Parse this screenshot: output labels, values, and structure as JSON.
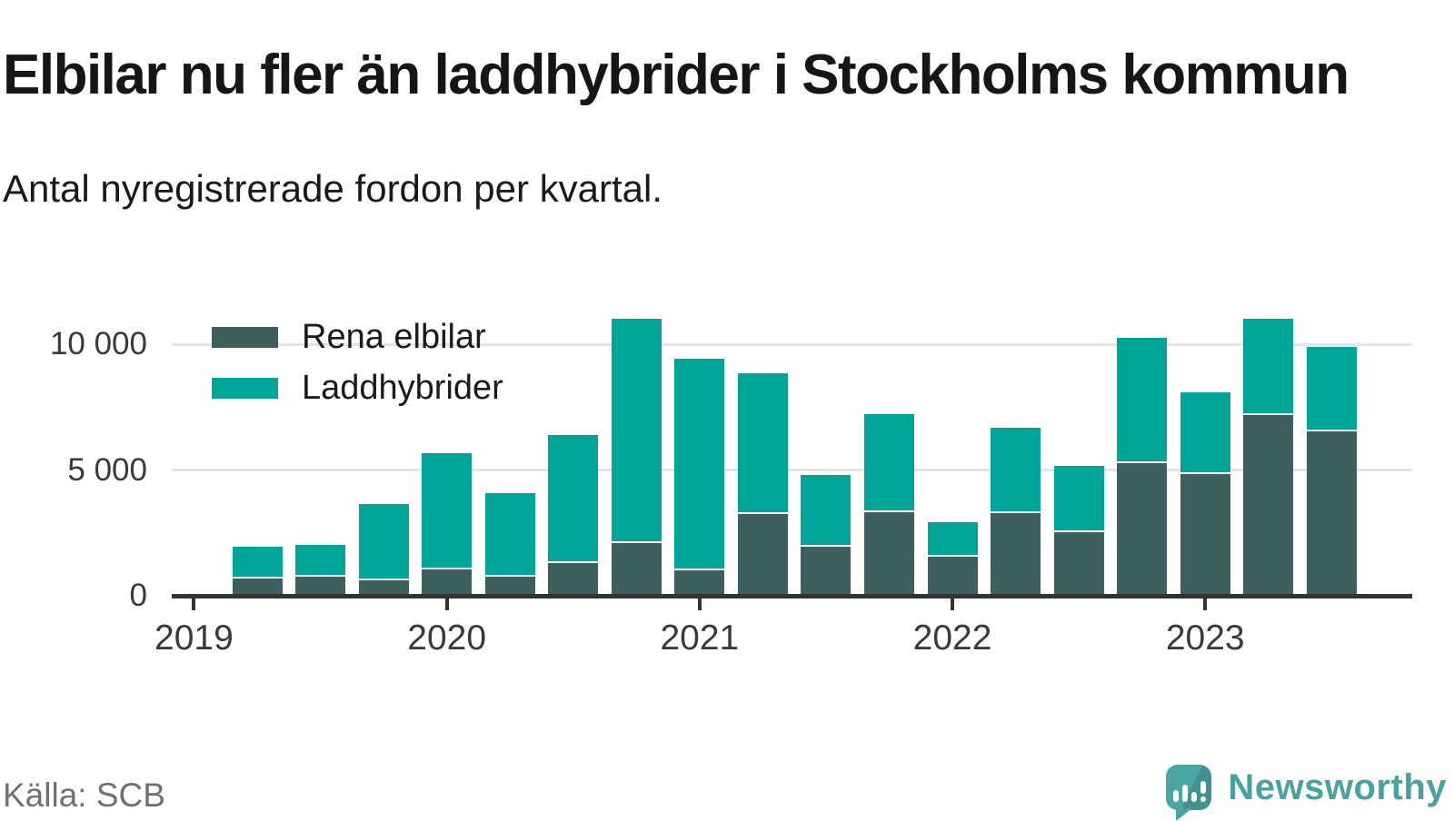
{
  "title": "Elbilar nu fler än laddhybrider i Stockholms kommun",
  "subtitle": "Antal nyregistrerade fordon per kvartal.",
  "source": "Källa: SCB",
  "brand": {
    "name": "Newsworthy",
    "icon": "newsworthy-speech-bubble-bar-chart-icon",
    "color": "#4aa2a0",
    "icon_color": "#4ba5a3"
  },
  "colors": {
    "elbilar": "#3d5f5e",
    "laddhybrider": "#00a59a",
    "axis": "#2f3434",
    "grid": "#e4e4e4",
    "text": "#1a1a1a",
    "tick_text": "#3a3a3a",
    "source_text": "#707076"
  },
  "legend": {
    "items": [
      {
        "label": "Rena elbilar",
        "color_key": "elbilar"
      },
      {
        "label": "Laddhybrider",
        "color_key": "laddhybrider"
      }
    ]
  },
  "chart_data": {
    "type": "bar",
    "stacked": true,
    "title": "Elbilar nu fler än laddhybrider i Stockholms kommun",
    "xlabel": "",
    "ylabel": "",
    "ylim": [
      0,
      11400
    ],
    "grid": "horizontal",
    "legend_position": "top-left-inside",
    "categories": [
      "2019 kv2",
      "2019 kv3",
      "2019 kv4",
      "2020 kv1",
      "2020 kv2",
      "2020 kv3",
      "2020 kv4",
      "2021 kv1",
      "2021 kv2",
      "2021 kv3",
      "2021 kv4",
      "2022 kv1",
      "2022 kv2",
      "2022 kv3",
      "2022 kv4",
      "2023 kv1",
      "2023 kv2",
      "2023 kv3"
    ],
    "series": [
      {
        "name": "Rena elbilar",
        "color_key": "elbilar",
        "values": [
          600,
          700,
          560,
          970,
          670,
          1240,
          2030,
          950,
          3190,
          1870,
          3250,
          1490,
          3200,
          2470,
          5190,
          4750,
          7130,
          6470
        ]
      },
      {
        "name": "Laddhybrider",
        "color_key": "laddhybrider",
        "values": [
          1270,
          1260,
          3030,
          4620,
          3330,
          5070,
          8910,
          8390,
          5590,
          2870,
          3890,
          1380,
          3400,
          2630,
          4990,
          3260,
          3820,
          3340
        ]
      }
    ],
    "totals": [
      1870,
      1960,
      3590,
      5590,
      4000,
      6310,
      10940,
      9340,
      8780,
      4740,
      7140,
      2870,
      6600,
      5100,
      10180,
      8010,
      10950,
      9810
    ],
    "y_axis": {
      "tick_values": [
        0,
        5000,
        10000
      ],
      "tick_labels": [
        "0",
        "5 000",
        "10 000"
      ],
      "gridline_values": [
        5000,
        10000
      ]
    },
    "x_axis": {
      "year_ticks": [
        {
          "label": "2019",
          "category_index": -1
        },
        {
          "label": "2020",
          "category_index": 3
        },
        {
          "label": "2021",
          "category_index": 7
        },
        {
          "label": "2022",
          "category_index": 11
        },
        {
          "label": "2023",
          "category_index": 15
        }
      ]
    }
  }
}
